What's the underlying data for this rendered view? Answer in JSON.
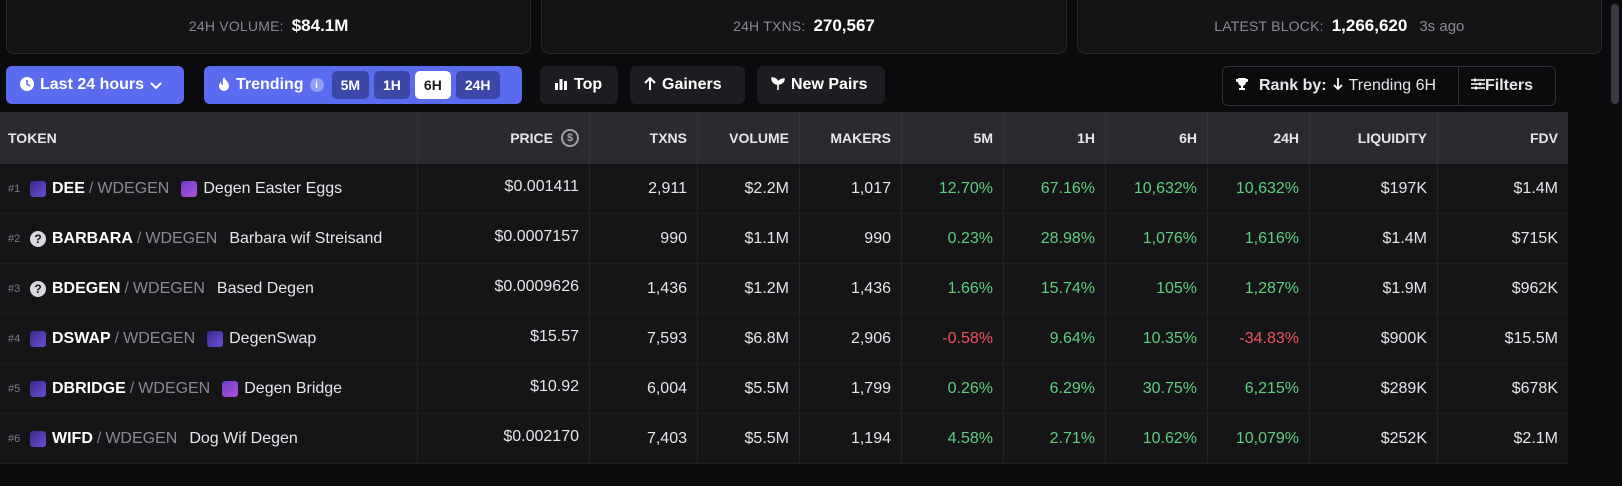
{
  "stats": {
    "volume_label": "24H VOLUME:",
    "volume_value": "$84.1M",
    "txns_label": "24H TXNS:",
    "txns_value": "270,567",
    "block_label": "LATEST BLOCK:",
    "block_value": "1,266,620",
    "block_ago": "3s ago"
  },
  "toolbar": {
    "time_label": "Last 24 hours",
    "trending_label": "Trending",
    "trending_tabs": [
      "5M",
      "1H",
      "6H",
      "24H"
    ],
    "trending_active": "6H",
    "top_label": "Top",
    "gainers_label": "Gainers",
    "new_pairs_label": "New Pairs",
    "rank_label": "Rank by:",
    "rank_value": "Trending 6H",
    "filters_label": "Filters"
  },
  "table": {
    "headers": [
      "TOKEN",
      "PRICE",
      "TXNS",
      "VOLUME",
      "MAKERS",
      "5M",
      "1H",
      "6H",
      "24H",
      "LIQUIDITY",
      "FDV"
    ],
    "rows": [
      {
        "rank": "#1",
        "icon": "purple",
        "symbol": "DEE",
        "quote": "WDEGEN",
        "name_icon": "pic",
        "name": "Degen Easter Eggs",
        "price": "$0.001411",
        "txns": "2,911",
        "volume": "$2.2M",
        "makers": "1,017",
        "m5": "12.70%",
        "h1": "67.16%",
        "h6": "10,632%",
        "h24": "10,632%",
        "liquidity": "$197K",
        "fdv": "$1.4M"
      },
      {
        "rank": "#2",
        "icon": "q",
        "symbol": "BARBARA",
        "quote": "WDEGEN",
        "name_icon": "",
        "name": "Barbara wif Streisand",
        "price": "$0.0007157",
        "txns": "990",
        "volume": "$1.1M",
        "makers": "990",
        "m5": "0.23%",
        "h1": "28.98%",
        "h6": "1,076%",
        "h24": "1,616%",
        "liquidity": "$1.4M",
        "fdv": "$715K"
      },
      {
        "rank": "#3",
        "icon": "q",
        "symbol": "BDEGEN",
        "quote": "WDEGEN",
        "name_icon": "",
        "name": "Based Degen",
        "price": "$0.0009626",
        "txns": "1,436",
        "volume": "$1.2M",
        "makers": "1,436",
        "m5": "1.66%",
        "h1": "15.74%",
        "h6": "105%",
        "h24": "1,287%",
        "liquidity": "$1.9M",
        "fdv": "$962K"
      },
      {
        "rank": "#4",
        "icon": "purple",
        "symbol": "DSWAP",
        "quote": "WDEGEN",
        "name_icon": "purple",
        "name": "DegenSwap",
        "price": "$15.57",
        "txns": "7,593",
        "volume": "$6.8M",
        "makers": "2,906",
        "m5": "-0.58%",
        "h1": "9.64%",
        "h6": "10.35%",
        "h24": "-34.83%",
        "liquidity": "$900K",
        "fdv": "$15.5M"
      },
      {
        "rank": "#5",
        "icon": "purple",
        "symbol": "DBRIDGE",
        "quote": "WDEGEN",
        "name_icon": "pic",
        "name": "Degen Bridge",
        "price": "$10.92",
        "txns": "6,004",
        "volume": "$5.5M",
        "makers": "1,799",
        "m5": "0.26%",
        "h1": "6.29%",
        "h6": "30.75%",
        "h24": "6,215%",
        "liquidity": "$289K",
        "fdv": "$678K"
      },
      {
        "rank": "#6",
        "icon": "purple",
        "symbol": "WIFD",
        "quote": "WDEGEN",
        "name_icon": "",
        "name": "Dog Wif Degen",
        "price": "$0.002170",
        "txns": "7,403",
        "volume": "$5.5M",
        "makers": "1,194",
        "m5": "4.58%",
        "h1": "2.71%",
        "h6": "10.62%",
        "h24": "10,079%",
        "liquidity": "$252K",
        "fdv": "$2.1M"
      }
    ]
  },
  "colors": {
    "accent": "#5a6bf0",
    "positive": "#5fcf7e",
    "negative": "#f0525a"
  },
  "icons": {
    "time": "clock-icon",
    "trending": "flame-icon",
    "info": "info-icon",
    "top": "bar-chart-icon",
    "gainers": "arrow-up-icon",
    "new_pairs": "sprout-icon",
    "rank": "trophy-icon",
    "filters": "sliders-icon",
    "price": "dollar-circle-icon"
  }
}
